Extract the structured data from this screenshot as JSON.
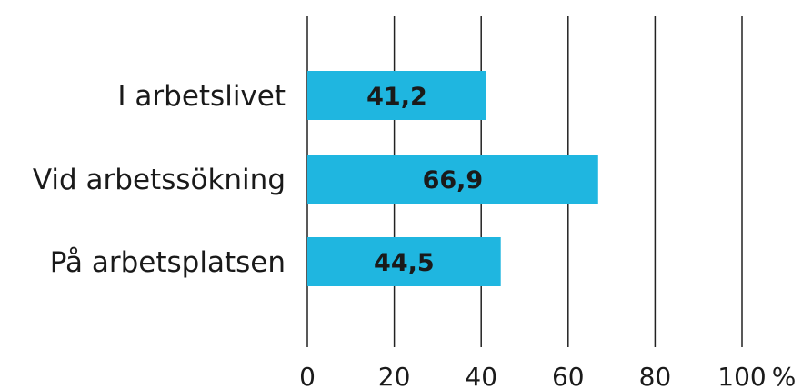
{
  "chart_data": {
    "type": "bar",
    "orientation": "horizontal",
    "categories": [
      "I arbetslivet",
      "Vid arbetssökning",
      "På arbetsplatsen"
    ],
    "values": [
      41.2,
      66.9,
      44.5
    ],
    "data_labels": [
      "41,2",
      "66,9",
      "44,5"
    ],
    "xlim": [
      0,
      100
    ],
    "x_ticks": [
      0,
      20,
      40,
      60,
      80,
      100
    ],
    "x_tick_labels": [
      "0",
      "20",
      "40",
      "60",
      "80",
      "100"
    ],
    "x_unit": "%",
    "grid": true,
    "colors": {
      "bar": "#1fb6e0",
      "grid": "#222222",
      "text": "#1a1a1a"
    }
  }
}
